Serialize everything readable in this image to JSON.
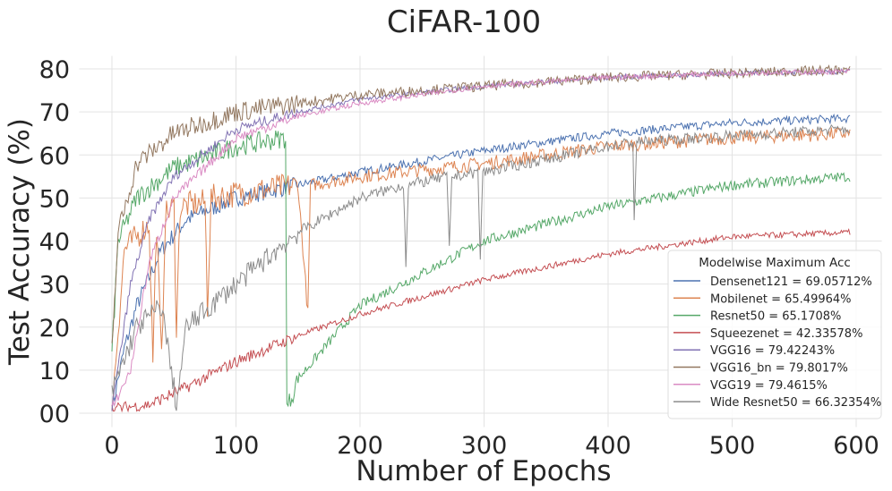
{
  "chart_data": {
    "type": "line",
    "title": "CiFAR-100",
    "xlabel": "Number of Epochs",
    "ylabel": "Test Accuracy (%)",
    "xlim": [
      -27,
      622
    ],
    "ylim": [
      -3,
      83
    ],
    "xticks": [
      0,
      100,
      200,
      300,
      400,
      500,
      600
    ],
    "xtick_labels": [
      "0",
      "100",
      "200",
      "300",
      "400",
      "500",
      "600"
    ],
    "yticks": [
      0,
      10,
      20,
      30,
      40,
      50,
      60,
      70,
      80
    ],
    "ytick_labels": [
      "00",
      "10",
      "20",
      "30",
      "40",
      "50",
      "60",
      "70",
      "80"
    ],
    "grid": true,
    "legend": {
      "title": "Modelwise Maximum Acc",
      "placement": "lower-right"
    },
    "series": [
      {
        "name": "Densenet121 = 69.05712%",
        "color": "#4c72b0",
        "noise": 1.0,
        "points": [
          [
            0,
            1
          ],
          [
            10,
            15
          ],
          [
            20,
            25
          ],
          [
            40,
            38
          ],
          [
            60,
            45
          ],
          [
            100,
            50
          ],
          [
            150,
            53
          ],
          [
            200,
            56
          ],
          [
            300,
            61
          ],
          [
            400,
            65
          ],
          [
            500,
            67.5
          ],
          [
            595,
            68.5
          ]
        ]
      },
      {
        "name": "Mobilenet = 65.49964%",
        "color": "#dd8452",
        "noise": 1.6,
        "points": [
          [
            0,
            1
          ],
          [
            10,
            38
          ],
          [
            30,
            44
          ],
          [
            33,
            13
          ],
          [
            36,
            44
          ],
          [
            40,
            12
          ],
          [
            43,
            46
          ],
          [
            50,
            48
          ],
          [
            52,
            20
          ],
          [
            55,
            48
          ],
          [
            75,
            49
          ],
          [
            77,
            25
          ],
          [
            80,
            50
          ],
          [
            100,
            51
          ],
          [
            150,
            53
          ],
          [
            158,
            23
          ],
          [
            160,
            53
          ],
          [
            200,
            55
          ],
          [
            300,
            58
          ],
          [
            400,
            62
          ],
          [
            500,
            64
          ],
          [
            595,
            65
          ]
        ]
      },
      {
        "name": "Resnet50 = 65.1708%",
        "color": "#55a868",
        "noise": 1.2,
        "points": [
          [
            0,
            14
          ],
          [
            5,
            40
          ],
          [
            20,
            50
          ],
          [
            50,
            57
          ],
          [
            100,
            62
          ],
          [
            140,
            64
          ],
          [
            141,
            1
          ],
          [
            150,
            8
          ],
          [
            200,
            25
          ],
          [
            300,
            40
          ],
          [
            400,
            48
          ],
          [
            500,
            53
          ],
          [
            595,
            55
          ]
        ]
      },
      {
        "name": "Squeezenet = 42.33578%",
        "color": "#c44e52",
        "noise": 0.7,
        "points": [
          [
            0,
            1
          ],
          [
            30,
            2
          ],
          [
            60,
            6
          ],
          [
            100,
            12
          ],
          [
            150,
            18
          ],
          [
            200,
            23
          ],
          [
            300,
            31
          ],
          [
            400,
            37
          ],
          [
            500,
            41
          ],
          [
            595,
            42
          ]
        ]
      },
      {
        "name": "VGG16 = 79.42243%",
        "color": "#8172b3",
        "noise": 0.6,
        "points": [
          [
            0,
            1
          ],
          [
            15,
            30
          ],
          [
            30,
            45
          ],
          [
            50,
            55
          ],
          [
            100,
            66
          ],
          [
            150,
            70
          ],
          [
            200,
            73
          ],
          [
            300,
            76
          ],
          [
            400,
            78
          ],
          [
            500,
            79
          ],
          [
            595,
            79.4
          ]
        ]
      },
      {
        "name": "VGG16_bn = 79.8017%",
        "color": "#937860",
        "noise": 1.2,
        "points": [
          [
            0,
            15
          ],
          [
            5,
            42
          ],
          [
            20,
            58
          ],
          [
            50,
            65
          ],
          [
            100,
            70
          ],
          [
            200,
            74
          ],
          [
            300,
            76
          ],
          [
            400,
            78
          ],
          [
            500,
            79
          ],
          [
            595,
            79.8
          ]
        ]
      },
      {
        "name": "VGG19 = 79.4615%",
        "color": "#da8bc3",
        "noise": 0.6,
        "points": [
          [
            0,
            1
          ],
          [
            15,
            10
          ],
          [
            30,
            35
          ],
          [
            50,
            50
          ],
          [
            100,
            64
          ],
          [
            150,
            69
          ],
          [
            200,
            72
          ],
          [
            300,
            76
          ],
          [
            400,
            78
          ],
          [
            500,
            79
          ],
          [
            595,
            79.4
          ]
        ]
      },
      {
        "name": "Wide Resnet50 = 66.32354%",
        "color": "#8c8c8c",
        "noise": 1.3,
        "points": [
          [
            0,
            5
          ],
          [
            20,
            20
          ],
          [
            40,
            25
          ],
          [
            52,
            2
          ],
          [
            60,
            20
          ],
          [
            100,
            30
          ],
          [
            150,
            42
          ],
          [
            200,
            50
          ],
          [
            235,
            53
          ],
          [
            237,
            35
          ],
          [
            239,
            53
          ],
          [
            270,
            55
          ],
          [
            272,
            38
          ],
          [
            274,
            55
          ],
          [
            295,
            56
          ],
          [
            297,
            36
          ],
          [
            299,
            56
          ],
          [
            400,
            62
          ],
          [
            420,
            63
          ],
          [
            421,
            45
          ],
          [
            423,
            63
          ],
          [
            500,
            64.5
          ],
          [
            595,
            66
          ]
        ]
      }
    ]
  }
}
